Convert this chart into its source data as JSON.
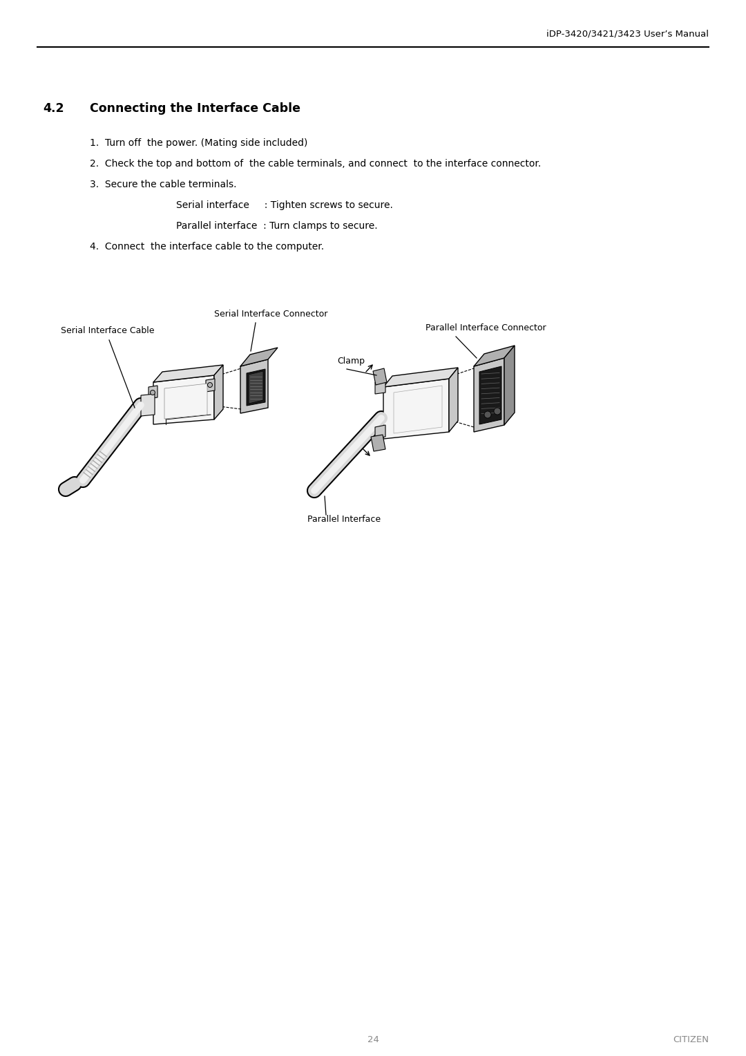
{
  "bg_color": "#ffffff",
  "header_text": "iDP-3420/3421/3423 User’s Manual",
  "header_fontsize": 9.5,
  "section_number": "4.2",
  "section_title": "Connecting the Interface Cable",
  "section_fontsize": 12.5,
  "body_fontsize": 10,
  "item1": "1.  Turn off  the power. (Mating side included)",
  "item2": "2.  Check the top and bottom of  the cable terminals, and connect  to the interface connector.",
  "item3": "3.  Secure the cable terminals.",
  "sub1": "Serial interface     : Tighten screws to secure.",
  "sub2": "Parallel interface  : Turn clamps to secure.",
  "item4": "4.  Connect  the interface cable to the computer.",
  "label_serial_cable": "Serial Interface Cable",
  "label_serial_connector": "Serial Interface Connector",
  "label_parallel_connector": "Parallel Interface Connector",
  "label_clamp": "Clamp",
  "label_parallel_interface": "Parallel Interface",
  "footer_page": "24",
  "footer_brand": "CITIZEN",
  "footer_fontsize": 9.5,
  "text_color": "#000000",
  "gray_text": "#888888"
}
